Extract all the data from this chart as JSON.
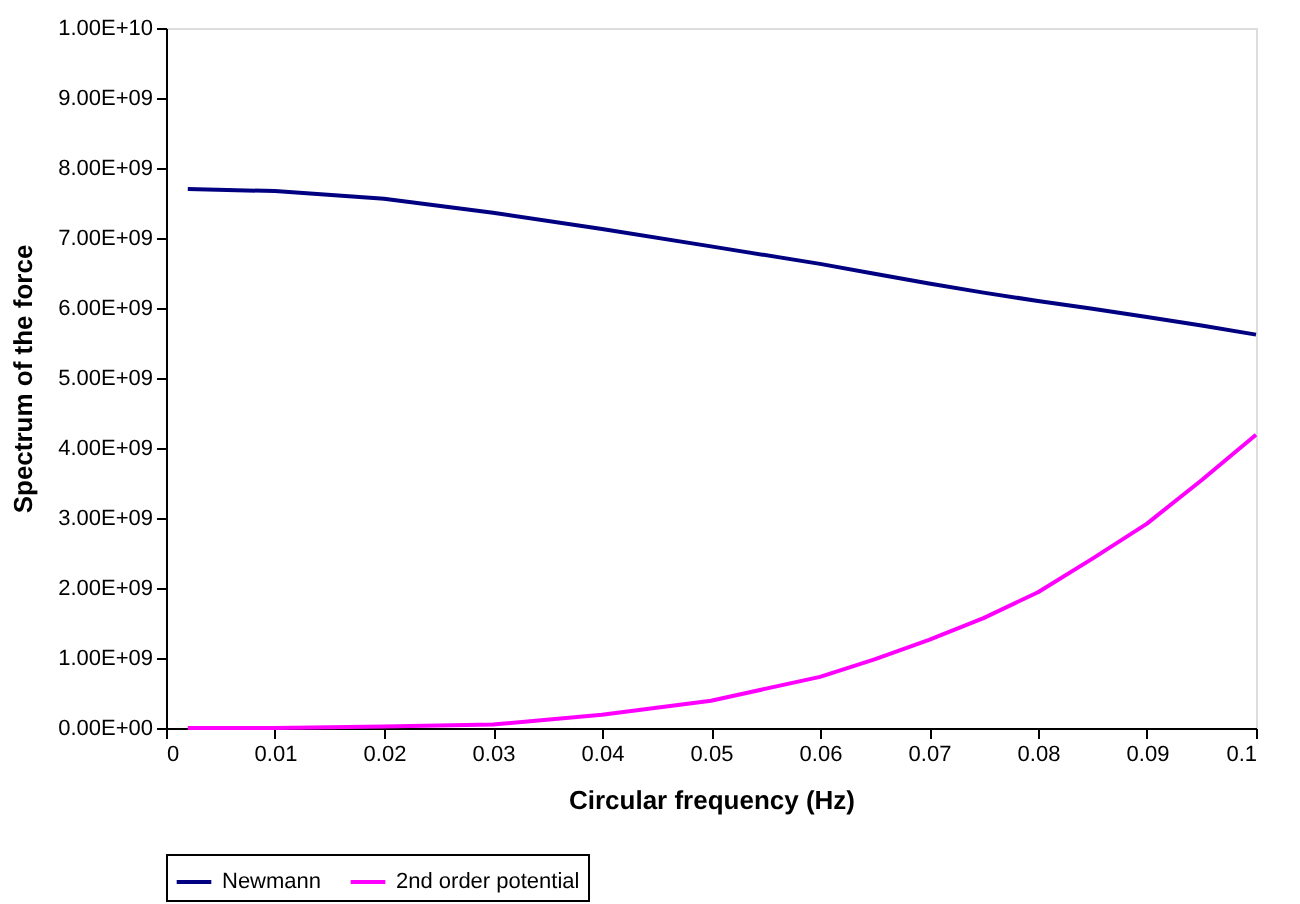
{
  "chart_data": {
    "type": "line",
    "xlabel": "Circular frequency (Hz)",
    "ylabel": "Spectrum of the force",
    "xlim": [
      0,
      0.1
    ],
    "xticks": [
      0,
      0.01,
      0.02,
      0.03,
      0.04,
      0.05,
      0.06,
      0.07,
      0.08,
      0.09,
      0.1
    ],
    "ylim": [
      0,
      10000000000
    ],
    "yticks": [
      {
        "value": 0,
        "label": "0.00E+00"
      },
      {
        "value": 1000000000,
        "label": "1.00E+09"
      },
      {
        "value": 2000000000,
        "label": "2.00E+09"
      },
      {
        "value": 3000000000,
        "label": "3.00E+09"
      },
      {
        "value": 4000000000,
        "label": "4.00E+09"
      },
      {
        "value": 5000000000,
        "label": "5.00E+09"
      },
      {
        "value": 6000000000,
        "label": "6.00E+09"
      },
      {
        "value": 7000000000,
        "label": "7.00E+09"
      },
      {
        "value": 8000000000,
        "label": "8.00E+09"
      },
      {
        "value": 9000000000,
        "label": "9.00E+09"
      },
      {
        "value": 10000000000,
        "label": "1.00E+10"
      }
    ],
    "x": [
      0.002,
      0.01,
      0.02,
      0.03,
      0.04,
      0.05,
      0.06,
      0.065,
      0.07,
      0.075,
      0.08,
      0.085,
      0.09,
      0.095,
      0.1
    ],
    "series": [
      {
        "name": "Newmann",
        "color": "#000080",
        "values": [
          7700000000,
          7670000000,
          7560000000,
          7360000000,
          7130000000,
          6880000000,
          6630000000,
          6490000000,
          6350000000,
          6220000000,
          6100000000,
          5990000000,
          5870000000,
          5750000000,
          5620000000
        ]
      },
      {
        "name": "2nd order potential",
        "color": "#ff00ff",
        "values": [
          0,
          0,
          20000000,
          50000000,
          190000000,
          390000000,
          730000000,
          980000000,
          1260000000,
          1570000000,
          1940000000,
          2420000000,
          2920000000,
          3540000000,
          4190000000
        ]
      }
    ],
    "grid": false,
    "legend": "bottom",
    "marker": "none",
    "line_style": "solid"
  }
}
